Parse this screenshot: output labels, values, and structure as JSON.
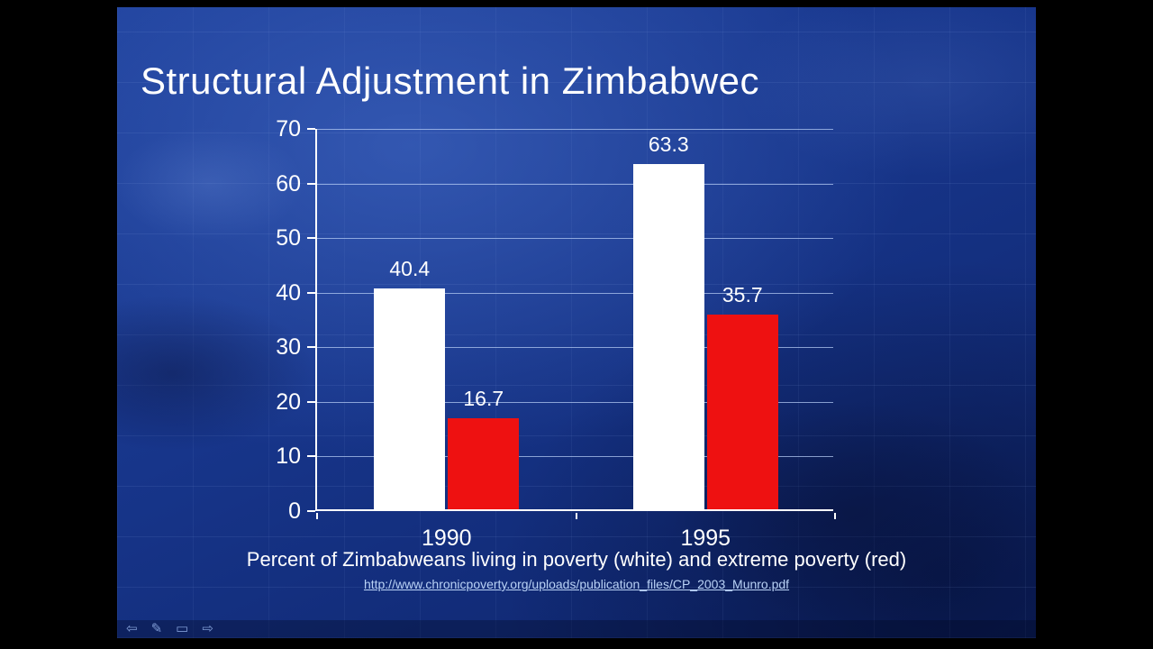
{
  "slide": {
    "title": "Structural Adjustment in Zimbabwec",
    "caption": "Percent of Zimbabweans living in poverty (white) and extreme poverty (red)",
    "link": "http://www.chronicpoverty.org/uploads/publication_files/CP_2003_Munro.pdf"
  },
  "chart_data": {
    "type": "bar",
    "title": "Structural Adjustment in Zimbabwec",
    "categories": [
      "1990",
      "1995"
    ],
    "series": [
      {
        "name": "poverty (white)",
        "color": "#ffffff",
        "values": [
          40.4,
          63.3
        ]
      },
      {
        "name": "extreme poverty (red)",
        "color": "#ee1111",
        "values": [
          16.7,
          35.7
        ]
      }
    ],
    "xlabel": "",
    "ylabel": "",
    "ylim": [
      0,
      70
    ],
    "yticks": [
      0,
      10,
      20,
      30,
      40,
      50,
      60,
      70
    ],
    "grid": true,
    "legend_position": "none"
  },
  "toolbar": {
    "icons": [
      {
        "name": "back-arrow-icon",
        "glyph": "⇦"
      },
      {
        "name": "pen-icon",
        "glyph": "✎"
      },
      {
        "name": "slide-menu-icon",
        "glyph": "▭"
      },
      {
        "name": "forward-arrow-icon",
        "glyph": "⇨"
      }
    ]
  },
  "colors": {
    "background": "#17358a",
    "bar_white": "#ffffff",
    "bar_red": "#ee1111",
    "gridline": "#b2c8f2",
    "axis": "#ffffff",
    "link": "#b9d2f6"
  }
}
